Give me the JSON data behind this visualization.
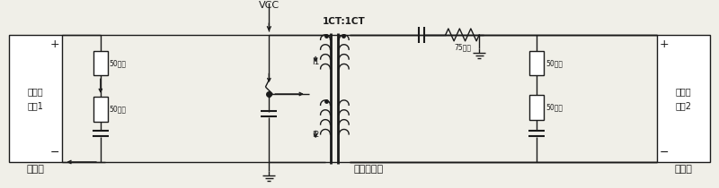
{
  "bg_color": "#f0efe8",
  "line_color": "#1a1a1a",
  "figsize": [
    8.0,
    2.1
  ],
  "dpi": 100,
  "title_vcc": "VCC",
  "title_ct": "1CT:1CT",
  "title_transformer": "隔离变压器",
  "title_send": "发送端",
  "title_receive": "接收端",
  "label_chip1_line1": "物理层",
  "label_chip1_line2": "芯片1",
  "label_chip2_line1": "物理层",
  "label_chip2_line2": "芯片2",
  "label_50ohm": "50欧姆",
  "label_75ohm": "75欧姆",
  "label_i1": "I1",
  "label_i2": "I2"
}
